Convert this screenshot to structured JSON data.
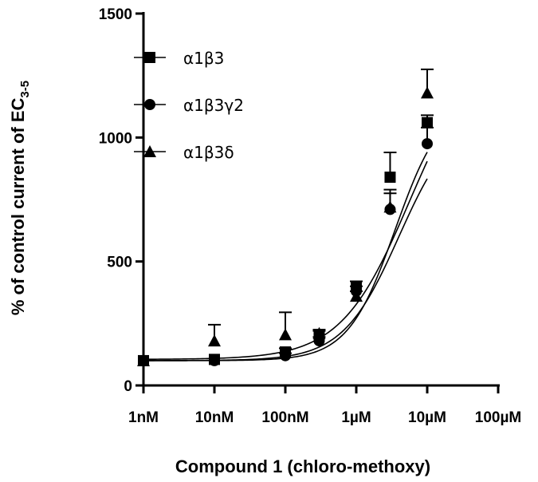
{
  "chart_data": {
    "type": "scatter",
    "xlabel": "Compound 1 (chloro-methoxy)",
    "ylabel_main": "% of control current of EC",
    "ylabel_sub": "3-5",
    "x_scale": "log",
    "x_unit": "M",
    "xlim": [
      1e-09,
      0.0001
    ],
    "ylim": [
      0,
      1500
    ],
    "x_ticks": [
      {
        "value": 1e-09,
        "label": "1nM"
      },
      {
        "value": 1e-08,
        "label": "10nM"
      },
      {
        "value": 1e-07,
        "label": "100nM"
      },
      {
        "value": 1e-06,
        "label": "1µM"
      },
      {
        "value": 1e-05,
        "label": "10µM"
      },
      {
        "value": 0.0001,
        "label": "100µM"
      }
    ],
    "y_ticks": [
      {
        "value": 0,
        "label": "0"
      },
      {
        "value": 500,
        "label": "500"
      },
      {
        "value": 1000,
        "label": "1000"
      },
      {
        "value": 1500,
        "label": "1500"
      }
    ],
    "legend_position": "top-left",
    "series": [
      {
        "name": "α1β3",
        "marker": "square",
        "x": [
          1e-09,
          1e-08,
          1e-07,
          3e-07,
          1e-06,
          3e-06,
          1e-05
        ],
        "y": [
          100,
          105,
          135,
          205,
          400,
          840,
          1060
        ],
        "error": [
          0,
          0,
          15,
          15,
          20,
          100,
          30
        ],
        "fit": {
          "bottom": 100,
          "top": 1160,
          "log_ec50": -5.45,
          "hill": 1.3
        }
      },
      {
        "name": "α1β3γ2",
        "marker": "circle",
        "x": [
          1e-09,
          1e-08,
          1e-07,
          3e-07,
          1e-06,
          3e-06,
          1e-05
        ],
        "y": [
          100,
          100,
          120,
          180,
          380,
          710,
          975
        ],
        "error": [
          0,
          0,
          10,
          15,
          20,
          65,
          65
        ],
        "fit": {
          "bottom": 100,
          "top": 1100,
          "log_ec50": -5.4,
          "hill": 1.1
        }
      },
      {
        "name": "α1β3δ",
        "marker": "triangle",
        "x": [
          1e-09,
          1e-08,
          1e-07,
          3e-07,
          1e-06,
          3e-06,
          1e-05
        ],
        "y": [
          100,
          180,
          205,
          210,
          360,
          720,
          1180
        ],
        "error": [
          0,
          65,
          90,
          15,
          20,
          70,
          95
        ],
        "fit": {
          "bottom": 105,
          "top": 1380,
          "log_ec50": -5.25,
          "hill": 0.9
        }
      }
    ]
  }
}
